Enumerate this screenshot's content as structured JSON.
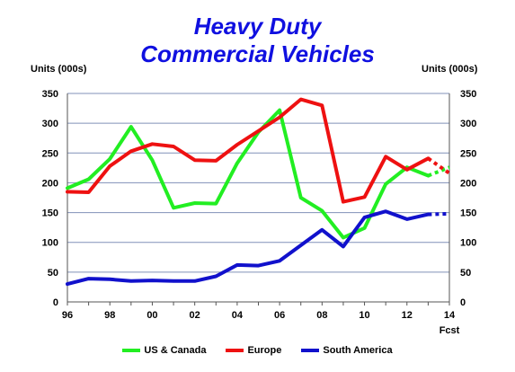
{
  "chart_data": {
    "type": "line",
    "title_line1": "Heavy Duty",
    "title_line2": "Commercial Vehicles",
    "ylabel_left": "Units (000s)",
    "ylabel_right": "Units (000s)",
    "xlabel_note": "Fcst",
    "ylim": [
      0,
      350
    ],
    "yticks": [
      0,
      50,
      100,
      150,
      200,
      250,
      300,
      350
    ],
    "xlim": [
      1996,
      2014
    ],
    "xticks": [
      {
        "year": 1996,
        "label": "96"
      },
      {
        "year": 1998,
        "label": "98"
      },
      {
        "year": 2000,
        "label": "00"
      },
      {
        "year": 2002,
        "label": "02"
      },
      {
        "year": 2004,
        "label": "04"
      },
      {
        "year": 2006,
        "label": "06"
      },
      {
        "year": 2008,
        "label": "08"
      },
      {
        "year": 2010,
        "label": "10"
      },
      {
        "year": 2012,
        "label": "12"
      },
      {
        "year": 2014,
        "label": "14"
      }
    ],
    "x": [
      1996,
      1997,
      1998,
      1999,
      2000,
      2001,
      2002,
      2003,
      2004,
      2005,
      2006,
      2007,
      2008,
      2009,
      2010,
      2011,
      2012,
      2013
    ],
    "forecast_x": [
      2013,
      2014
    ],
    "series": [
      {
        "name": "US & Canada",
        "color": "#22ee22",
        "values": [
          191,
          206,
          240,
          294,
          238,
          158,
          166,
          165,
          233,
          285,
          322,
          175,
          153,
          108,
          124,
          198,
          226,
          212
        ],
        "forecast": [
          212,
          226
        ]
      },
      {
        "name": "Europe",
        "color": "#ee1111",
        "values": [
          185,
          184,
          228,
          253,
          265,
          261,
          238,
          237,
          264,
          287,
          310,
          340,
          330,
          168,
          176,
          244,
          222,
          241
        ],
        "forecast": [
          241,
          216
        ]
      },
      {
        "name": "South America",
        "color": "#1111cc",
        "values": [
          30,
          39,
          38,
          35,
          36,
          35,
          35,
          43,
          62,
          61,
          69,
          95,
          121,
          93,
          142,
          152,
          139,
          147
        ],
        "forecast": [
          147,
          148
        ]
      }
    ],
    "grid": true,
    "legend_position": "bottom"
  }
}
